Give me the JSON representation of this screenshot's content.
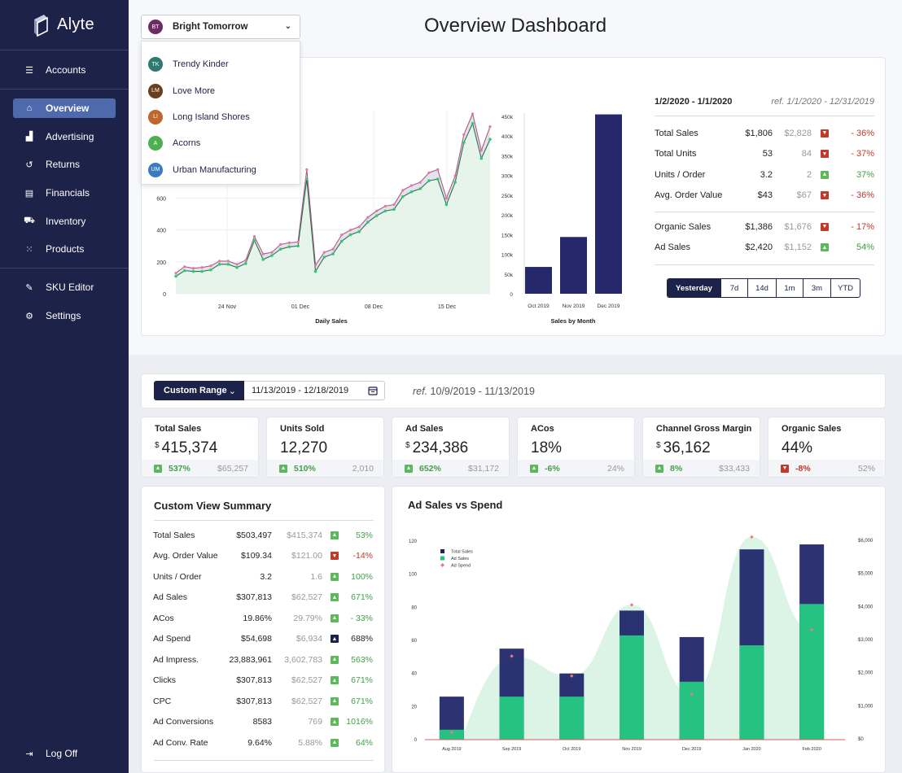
{
  "app": {
    "name": "Alyte"
  },
  "page_title": "Overview Dashboard",
  "sidebar": {
    "items": [
      {
        "label": "Accounts",
        "icon": "list-icon"
      },
      {
        "label": "Overview",
        "icon": "home-icon",
        "active": true
      },
      {
        "label": "Advertising",
        "icon": "bar-chart-icon"
      },
      {
        "label": "Returns",
        "icon": "undo-icon"
      },
      {
        "label": "Financials",
        "icon": "document-icon"
      },
      {
        "label": "Inventory",
        "icon": "cart-icon"
      },
      {
        "label": "Products",
        "icon": "grid-icon"
      },
      {
        "label": "SKU Editor",
        "icon": "edit-icon"
      },
      {
        "label": "Settings",
        "icon": "user-gear-icon"
      }
    ],
    "logout_label": "Log Off"
  },
  "account_selector": {
    "selected": {
      "initials": "BT",
      "name": "Bright Tomorrow",
      "color": "#6b2c63"
    },
    "options": [
      {
        "initials": "TK",
        "name": "Trendy Kinder",
        "color": "#2e7a6e"
      },
      {
        "initials": "LM",
        "name": "Love More",
        "color": "#6b3e1e"
      },
      {
        "initials": "LI",
        "name": "Long Island Shores",
        "color": "#c0652b"
      },
      {
        "initials": "A",
        "name": "Acorns",
        "color": "#4caf50"
      },
      {
        "initials": "UM",
        "name": "Urban Manufacturing",
        "color": "#3a7bbf"
      }
    ]
  },
  "overview": {
    "period": "1/2/2020 - 1/1/2020",
    "ref_period": "ref. 1/1/2020 - 12/31/2019",
    "stats_a": [
      {
        "label": "Total Sales",
        "value": "$1,806",
        "prev": "$2,828",
        "dir": "down",
        "change": "- 36%"
      },
      {
        "label": "Total Units",
        "value": "53",
        "prev": "84",
        "dir": "down",
        "change": "- 37%"
      },
      {
        "label": "Units / Order",
        "value": "3.2",
        "prev": "2",
        "dir": "up",
        "change": "37%"
      },
      {
        "label": "Avg. Order Value",
        "value": "$43",
        "prev": "$67",
        "dir": "down",
        "change": "- 36%"
      }
    ],
    "stats_b": [
      {
        "label": "Organic Sales",
        "value": "$1,386",
        "prev": "$1,676",
        "dir": "down",
        "change": "- 17%"
      },
      {
        "label": "Ad Sales",
        "value": "$2,420",
        "prev": "$1,152",
        "dir": "up",
        "change": "54%"
      }
    ],
    "range_buttons": [
      "Yesterday",
      "7d",
      "14d",
      "1m",
      "3m",
      "YTD"
    ],
    "range_selected": "Yesterday"
  },
  "custom_range": {
    "button_label": "Custom Range",
    "date_value": "11/13/2019 - 12/18/2019",
    "ref_label": "ref.",
    "ref_range": "10/9/2019 - 11/13/2019"
  },
  "kpis": [
    {
      "title": "Total Sales",
      "prefix": "$",
      "value": "415,374",
      "dir": "up",
      "pct": "537%",
      "old": "$65,257"
    },
    {
      "title": "Units Sold",
      "prefix": "",
      "value": "12,270",
      "dir": "up",
      "pct": "510%",
      "old": "2,010"
    },
    {
      "title": "Ad Sales",
      "prefix": "$",
      "value": "234,386",
      "dir": "up",
      "pct": "652%",
      "old": "$31,172"
    },
    {
      "title": "ACos",
      "prefix": "",
      "value": "18%",
      "dir": "up",
      "pct": "-6%",
      "old": "24%"
    },
    {
      "title": "Channel Gross Margin",
      "prefix": "$",
      "value": "36,162",
      "dir": "up",
      "pct": "8%",
      "old": "$33,433"
    },
    {
      "title": "Organic Sales",
      "prefix": "",
      "value": "44%",
      "dir": "down",
      "pct": "-8%",
      "old": "52%"
    }
  ],
  "summary": {
    "title": "Custom View Summary",
    "rows": [
      {
        "label": "Total Sales",
        "value": "$503,497",
        "prev": "$415,374",
        "dir": "up",
        "change": "53%"
      },
      {
        "label": "Avg. Order Value",
        "value": "$109.34",
        "prev": "$121.00",
        "dir": "down",
        "change": "-14%"
      },
      {
        "label": "Units / Order",
        "value": "3.2",
        "prev": "1.6",
        "dir": "up",
        "change": "100%"
      },
      {
        "label": "Ad Sales",
        "value": "$307,813",
        "prev": "$62,527",
        "dir": "up",
        "change": "671%"
      },
      {
        "label": "ACos",
        "value": "19.86%",
        "prev": "29.79%",
        "dir": "up",
        "change": "- 33%"
      },
      {
        "label": "Ad Spend",
        "value": "$54,698",
        "prev": "$6,934",
        "dir": "neutral",
        "change": "688%"
      },
      {
        "label": "Ad Impress.",
        "value": "23,883,961",
        "prev": "3,602,783",
        "dir": "up",
        "change": "563%"
      },
      {
        "label": "Clicks",
        "value": "$307,813",
        "prev": "$62,527",
        "dir": "up",
        "change": "671%"
      },
      {
        "label": "CPC",
        "value": "$307,813",
        "prev": "$62,527",
        "dir": "up",
        "change": "671%"
      },
      {
        "label": "Ad Conversions",
        "value": "8583",
        "prev": "769",
        "dir": "up",
        "change": "1016%"
      },
      {
        "label": "Ad Conv. Rate",
        "value": "9.64%",
        "prev": "5.88%",
        "dir": "up",
        "change": "64%"
      }
    ]
  },
  "ad_sales_card": {
    "title": "Ad Sales vs Spend"
  },
  "chart_data": [
    {
      "type": "line",
      "title": "",
      "xlabel": "Daily Sales",
      "ylabel": "",
      "x_ticks": [
        "24 Nov",
        "01 Dec",
        "08 Dec",
        "15 Dec"
      ],
      "y_ticks": [
        "0",
        "200",
        "400",
        "600"
      ],
      "ylim": [
        0,
        1150
      ],
      "series": [
        {
          "values": [
            130,
            170,
            160,
            165,
            175,
            205,
            205,
            185,
            210,
            360,
            250,
            260,
            310,
            320,
            325,
            780,
            180,
            260,
            280,
            370,
            400,
            420,
            480,
            520,
            550,
            560,
            650,
            680,
            700,
            760,
            780,
            600,
            740,
            1000,
            1130,
            900,
            1050
          ]
        },
        {
          "values": [
            110,
            145,
            140,
            140,
            150,
            185,
            185,
            165,
            190,
            335,
            215,
            240,
            280,
            295,
            300,
            720,
            140,
            230,
            250,
            330,
            370,
            390,
            450,
            490,
            520,
            530,
            610,
            640,
            660,
            710,
            720,
            560,
            700,
            950,
            1070,
            850,
            970
          ]
        }
      ]
    },
    {
      "type": "bar",
      "title": "",
      "xlabel": "Sales by Month",
      "ylabel": "",
      "categories": [
        "Oct 2019",
        "Nov 2019",
        "Dec 2019"
      ],
      "values": [
        68000,
        144000,
        455000
      ],
      "y_ticks": [
        "0",
        "50k",
        "100k",
        "150k",
        "200k",
        "250k",
        "300k",
        "350k",
        "400k",
        "450k"
      ],
      "ylim": [
        0,
        450000
      ]
    },
    {
      "type": "bar",
      "title": "",
      "categories": [
        "Aug 2019",
        "Sep 2019",
        "Oct 2019",
        "Nov 2019",
        "Dec 2019",
        "Jan 2020",
        "Feb 2020"
      ],
      "series": [
        {
          "name": "Total Sales",
          "values": [
            26,
            55,
            40,
            78,
            62,
            115,
            118
          ],
          "color": "#1d2268"
        },
        {
          "name": "Ad Sales",
          "values": [
            6,
            26,
            26,
            63,
            35,
            57,
            82
          ],
          "color": "#26c281"
        },
        {
          "name": "Ad Spend",
          "values": [
            200,
            2500,
            1900,
            4050,
            1350,
            6100,
            3300
          ],
          "axis": "right",
          "color": "#e97d7d"
        }
      ],
      "left_ticks": [
        "0",
        "20",
        "40",
        "60",
        "80",
        "100",
        "120"
      ],
      "ylim_left": [
        0,
        120
      ],
      "right_ticks": [
        "$0",
        "$1,000",
        "$2,000",
        "$3,000",
        "$4,000",
        "$5,000",
        "$6,000"
      ],
      "ylim_right": [
        0,
        6000
      ],
      "legend": "top-left"
    }
  ]
}
